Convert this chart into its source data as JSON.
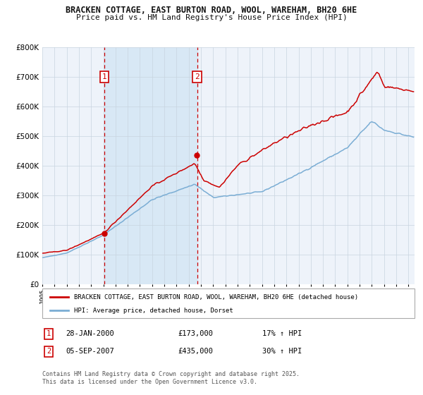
{
  "title1": "BRACKEN COTTAGE, EAST BURTON ROAD, WOOL, WAREHAM, BH20 6HE",
  "title2": "Price paid vs. HM Land Registry's House Price Index (HPI)",
  "red_label": "BRACKEN COTTAGE, EAST BURTON ROAD, WOOL, WAREHAM, BH20 6HE (detached house)",
  "blue_label": "HPI: Average price, detached house, Dorset",
  "annotation1_label": "1",
  "annotation1_date": "28-JAN-2000",
  "annotation1_price": "£173,000",
  "annotation1_hpi": "17% ↑ HPI",
  "annotation2_label": "2",
  "annotation2_date": "05-SEP-2007",
  "annotation2_price": "£435,000",
  "annotation2_hpi": "30% ↑ HPI",
  "copyright": "Contains HM Land Registry data © Crown copyright and database right 2025.\nThis data is licensed under the Open Government Licence v3.0.",
  "purchase1_year": 2000.08,
  "purchase1_value": 173000,
  "purchase2_year": 2007.68,
  "purchase2_value": 435000,
  "start_year": 1995,
  "end_year": 2025,
  "ymax": 800000,
  "background_color": "#ffffff",
  "plot_bg_color": "#eef3fa",
  "shade_color": "#d8e8f5",
  "grid_color": "#c8d4e0",
  "red_color": "#cc0000",
  "blue_color": "#7aadd4",
  "vline_color": "#cc0000",
  "title_color": "#111111",
  "legend_box_color": "#cc0000"
}
